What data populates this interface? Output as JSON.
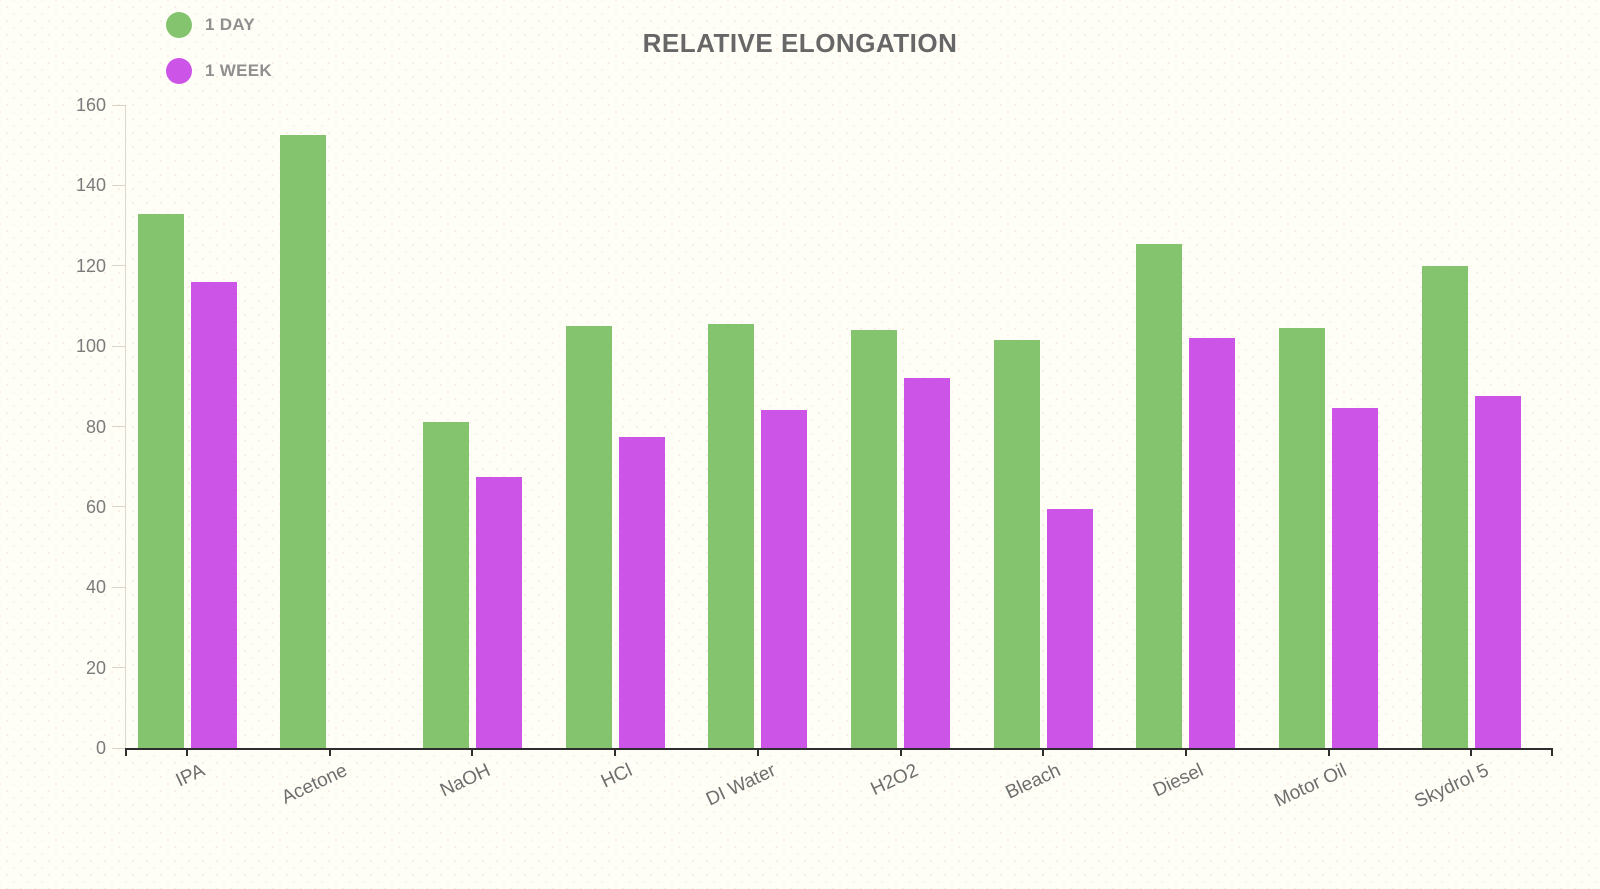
{
  "chart_data": {
    "type": "bar",
    "title": "RELATIVE ELONGATION",
    "categories": [
      "IPA",
      "Acetone",
      "NaOH",
      "HCl",
      "DI Water",
      "H2O2",
      "Bleach",
      "Diesel",
      "Motor Oil",
      "Skydrol 5"
    ],
    "series": [
      {
        "name": "1 DAY",
        "color": "#85C46F",
        "values": [
          133,
          152.5,
          81,
          105,
          105.5,
          104,
          101.5,
          125.5,
          104.5,
          120
        ]
      },
      {
        "name": "1 WEEK",
        "color": "#CC54E6",
        "values": [
          116,
          0,
          67.5,
          77.5,
          84,
          92,
          59.5,
          102,
          84.5,
          87.5
        ]
      }
    ],
    "ylim": [
      0,
      160
    ],
    "yticks": [
      0,
      20,
      40,
      60,
      80,
      100,
      120,
      140,
      160
    ],
    "grid": false,
    "legend_position": "top-left",
    "colors": {
      "background": "#fffef6",
      "axis_dark": "#2e2e2e",
      "axis_light": "#ddd8cb",
      "y_tick_label": "#7b7b7b",
      "category_label": "#6e6e6e",
      "title": "#676767",
      "legend_label": "#8f8f8f"
    }
  }
}
